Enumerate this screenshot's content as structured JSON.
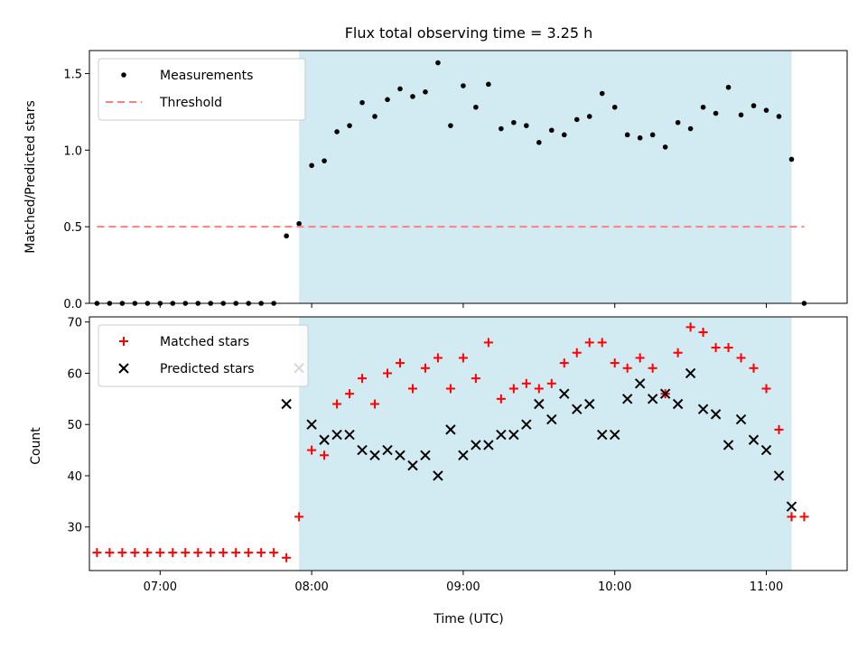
{
  "chart_data": [
    {
      "type": "scatter",
      "title": "Flux total observing time = 3.25 h",
      "xlabel": "",
      "ylabel": "Matched/Predicted stars",
      "xlim": [
        "06:32",
        "11:32"
      ],
      "ylim": [
        0,
        1.65
      ],
      "yticks": [
        "0.0",
        "0.5",
        "1.0",
        "1.5"
      ],
      "shaded_region": {
        "start": "07:55",
        "end": "11:10",
        "color": "#add8e6"
      },
      "grid": false,
      "legend_position": "upper left",
      "series": [
        {
          "name": "Measurements",
          "marker": "dot",
          "color": "#000000",
          "x": [
            "06:35",
            "06:40",
            "06:45",
            "06:50",
            "06:55",
            "07:00",
            "07:05",
            "07:10",
            "07:15",
            "07:20",
            "07:25",
            "07:30",
            "07:35",
            "07:40",
            "07:45",
            "07:50",
            "07:55",
            "08:00",
            "08:05",
            "08:10",
            "08:15",
            "08:20",
            "08:25",
            "08:30",
            "08:35",
            "08:40",
            "08:45",
            "08:50",
            "08:55",
            "09:00",
            "09:05",
            "09:10",
            "09:15",
            "09:20",
            "09:25",
            "09:30",
            "09:35",
            "09:40",
            "09:45",
            "09:50",
            "09:55",
            "10:00",
            "10:05",
            "10:10",
            "10:15",
            "10:20",
            "10:25",
            "10:30",
            "10:35",
            "10:40",
            "10:45",
            "10:50",
            "10:55",
            "11:00",
            "11:05",
            "11:10",
            "11:15"
          ],
          "values": [
            0,
            0,
            0,
            0,
            0,
            0,
            0,
            0,
            0,
            0,
            0,
            0,
            0,
            0,
            0,
            0.44,
            0.52,
            0.9,
            0.93,
            1.12,
            1.16,
            1.31,
            1.22,
            1.33,
            1.4,
            1.35,
            1.38,
            1.57,
            1.16,
            1.42,
            1.28,
            1.43,
            1.14,
            1.18,
            1.16,
            1.05,
            1.13,
            1.1,
            1.2,
            1.22,
            1.37,
            1.28,
            1.1,
            1.08,
            1.1,
            1.02,
            1.18,
            1.14,
            1.28,
            1.24,
            1.41,
            1.23,
            1.29,
            1.26,
            1.22,
            0.94,
            0
          ]
        },
        {
          "name": "Threshold",
          "marker": "dashed-line",
          "color": "#ff7f7f",
          "x": [
            "06:35",
            "11:15"
          ],
          "values": [
            0.5,
            0.5
          ]
        }
      ]
    },
    {
      "type": "scatter",
      "title": "",
      "xlabel": "Time (UTC)",
      "ylabel": "Count",
      "xlim": [
        "06:32",
        "11:32"
      ],
      "ylim": [
        21.5,
        71
      ],
      "yticks": [
        "30",
        "40",
        "50",
        "60",
        "70"
      ],
      "xticks": [
        "07:00",
        "08:00",
        "09:00",
        "10:00",
        "11:00"
      ],
      "shaded_region": {
        "start": "07:55",
        "end": "11:10",
        "color": "#add8e6"
      },
      "grid": false,
      "legend_position": "upper left",
      "series": [
        {
          "name": "Matched stars",
          "marker": "plus",
          "color": "#ff0000",
          "x": [
            "06:35",
            "06:40",
            "06:45",
            "06:50",
            "06:55",
            "07:00",
            "07:05",
            "07:10",
            "07:15",
            "07:20",
            "07:25",
            "07:30",
            "07:35",
            "07:40",
            "07:45",
            "07:50",
            "07:55",
            "08:00",
            "08:05",
            "08:10",
            "08:15",
            "08:20",
            "08:25",
            "08:30",
            "08:35",
            "08:40",
            "08:45",
            "08:50",
            "08:55",
            "09:00",
            "09:05",
            "09:10",
            "09:15",
            "09:20",
            "09:25",
            "09:30",
            "09:35",
            "09:40",
            "09:45",
            "09:50",
            "09:55",
            "10:00",
            "10:05",
            "10:10",
            "10:15",
            "10:20",
            "10:25",
            "10:30",
            "10:35",
            "10:40",
            "10:45",
            "10:50",
            "10:55",
            "11:00",
            "11:05",
            "11:10",
            "11:15"
          ],
          "values": [
            25,
            25,
            25,
            25,
            25,
            25,
            25,
            25,
            25,
            25,
            25,
            25,
            25,
            25,
            25,
            24,
            32,
            45,
            44,
            54,
            56,
            59,
            54,
            60,
            62,
            57,
            61,
            63,
            57,
            63,
            59,
            66,
            55,
            57,
            58,
            57,
            58,
            62,
            64,
            66,
            66,
            62,
            61,
            63,
            61,
            56,
            64,
            69,
            68,
            65,
            65,
            63,
            61,
            57,
            49,
            32,
            32
          ]
        },
        {
          "name": "Predicted stars",
          "marker": "x",
          "color": "#000000",
          "x": [
            "07:50",
            "07:55",
            "08:00",
            "08:05",
            "08:10",
            "08:15",
            "08:20",
            "08:25",
            "08:30",
            "08:35",
            "08:40",
            "08:45",
            "08:50",
            "08:55",
            "09:00",
            "09:05",
            "09:10",
            "09:15",
            "09:20",
            "09:25",
            "09:30",
            "09:35",
            "09:40",
            "09:45",
            "09:50",
            "09:55",
            "10:00",
            "10:05",
            "10:10",
            "10:15",
            "10:20",
            "10:25",
            "10:30",
            "10:35",
            "10:40",
            "10:45",
            "10:50",
            "10:55",
            "11:00",
            "11:05",
            "11:10"
          ],
          "values": [
            54,
            61,
            50,
            47,
            48,
            48,
            45,
            44,
            45,
            44,
            42,
            44,
            40,
            49,
            44,
            46,
            46,
            48,
            48,
            50,
            54,
            51,
            56,
            53,
            54,
            48,
            48,
            55,
            58,
            55,
            56,
            54,
            60,
            53,
            52,
            46,
            51,
            47,
            45,
            40,
            34
          ]
        }
      ]
    }
  ]
}
